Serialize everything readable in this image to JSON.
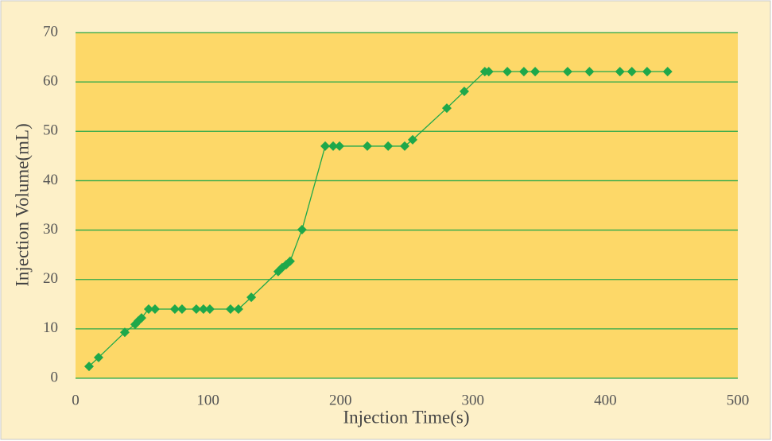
{
  "chart_data": {
    "type": "line",
    "xlabel": "Injection Time(s)",
    "ylabel": "Injection Volume(mL)",
    "series": [
      {
        "color": "#1ea84a",
        "x": [
          10.2,
          17.4,
          37.2,
          45,
          47.4,
          49.8,
          55.2,
          60,
          75,
          80.4,
          91.2,
          96.6,
          101.4,
          117,
          123,
          132.7,
          153,
          156,
          159,
          162,
          171,
          188.5,
          194.5,
          199.3,
          220.3,
          236,
          248.5,
          254.5,
          280.3,
          293.5,
          309,
          312,
          326,
          338.5,
          347,
          371.5,
          388,
          411,
          420,
          431.5,
          447
        ],
        "values": [
          2.4,
          4.2,
          9.3,
          10.9,
          11.6,
          12.2,
          14,
          14,
          14,
          14,
          14,
          14,
          14,
          14,
          14,
          16.4,
          21.6,
          22.4,
          23,
          23.7,
          30.1,
          47,
          47,
          47,
          47,
          47,
          47,
          48.3,
          54.7,
          58.1,
          62.1,
          62.1,
          62.1,
          62.1,
          62.1,
          62.1,
          62.1,
          62.1,
          62.1,
          62.1,
          62.1
        ]
      }
    ],
    "xlim": [
      0,
      500
    ],
    "xticks": [
      0,
      100,
      200,
      300,
      400,
      500
    ],
    "ylim": [
      0,
      70
    ],
    "yticks": [
      0,
      10,
      20,
      30,
      40,
      50,
      60,
      70
    ],
    "grid": true
  }
}
